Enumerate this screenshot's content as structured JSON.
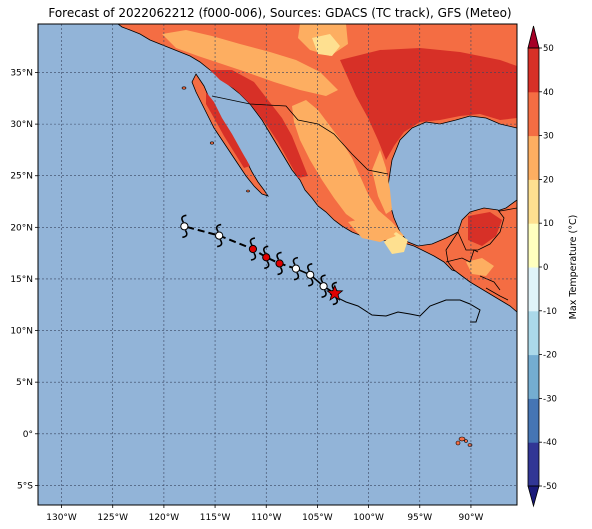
{
  "title": "Forecast of 2022062212 (f000-006), Sources: GDACS (TC track), GFS (Meteo)",
  "map": {
    "lon_range": [
      -132.3,
      -85.5
    ],
    "lat_range": [
      -6.9,
      39.7
    ],
    "lon_ticks": [
      "130°W",
      "125°W",
      "120°W",
      "115°W",
      "110°W",
      "105°W",
      "100°W",
      "95°W",
      "90°W"
    ],
    "lat_ticks": [
      "5°S",
      "0°",
      "5°N",
      "10°N",
      "15°N",
      "20°N",
      "25°N",
      "30°N",
      "35°N"
    ],
    "ocean_color": "#92b4d8",
    "gridlines": true
  },
  "track": {
    "past_positions": [
      {
        "lon": -103.3,
        "lat": 13.6
      },
      {
        "lon": -104.4,
        "lat": 14.3
      },
      {
        "lon": -105.7,
        "lat": 15.4
      },
      {
        "lon": -107.1,
        "lat": 16.0
      }
    ],
    "forecast_positions": [
      {
        "lon": -108.7,
        "lat": 16.5,
        "type": "hurricane"
      },
      {
        "lon": -110.0,
        "lat": 17.1,
        "type": "hurricane"
      },
      {
        "lon": -111.3,
        "lat": 17.9,
        "type": "hurricane"
      },
      {
        "lon": -114.6,
        "lat": 19.2,
        "type": "storm"
      },
      {
        "lon": -118.0,
        "lat": 20.1,
        "type": "storm"
      }
    ],
    "current_position": {
      "lon": -103.3,
      "lat": 13.6
    },
    "marker_colors": {
      "hurricane": "#e00000",
      "storm": "#ffffff",
      "star": "#e00000"
    }
  },
  "colorbar": {
    "label": "Max Temperature (°C)",
    "ticks": [
      "-50",
      "-40",
      "-30",
      "-20",
      "-10",
      "0",
      "10",
      "20",
      "30",
      "40",
      "50"
    ],
    "colors": [
      "#313695",
      "#4575b4",
      "#74add1",
      "#abd9e9",
      "#e0f3f8",
      "#ffffbf",
      "#fee090",
      "#fdae61",
      "#f46d43",
      "#d73027",
      "#a50026"
    ]
  }
}
